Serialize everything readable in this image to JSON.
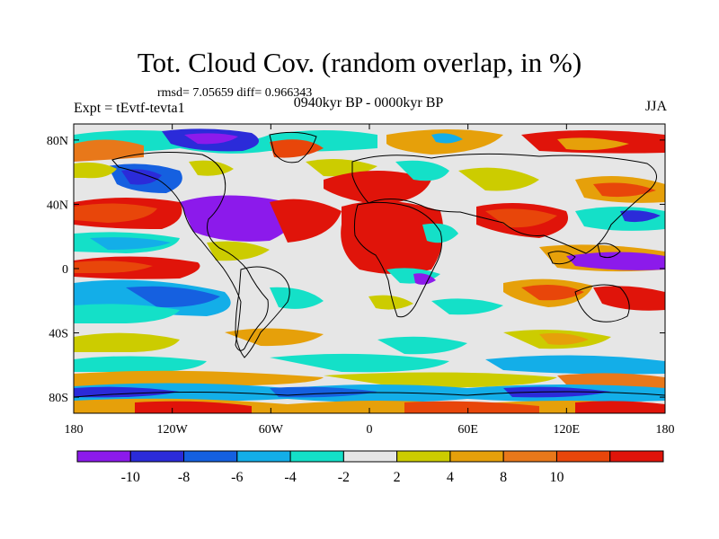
{
  "title": "Tot. Cloud Cov. (random overlap, in %)",
  "stats": "rmsd= 7.05659 diff= 0.966343",
  "experiment": "Expt = tEvtf-tevta1",
  "period": "0940kyr BP - 0000kyr BP",
  "season": "JJA",
  "axes": {
    "lon_ticks": [
      {
        "lon": -180,
        "label": "180"
      },
      {
        "lon": -120,
        "label": "120W"
      },
      {
        "lon": -60,
        "label": "60W"
      },
      {
        "lon": 0,
        "label": "0"
      },
      {
        "lon": 60,
        "label": "60E"
      },
      {
        "lon": 120,
        "label": "120E"
      },
      {
        "lon": 180,
        "label": "180"
      }
    ],
    "lat_ticks": [
      {
        "lat": 80,
        "label": "80N"
      },
      {
        "lat": 40,
        "label": "40N"
      },
      {
        "lat": 0,
        "label": "0"
      },
      {
        "lat": -40,
        "label": "40S"
      },
      {
        "lat": -80,
        "label": "80S"
      }
    ],
    "lon_range": [
      -180,
      180
    ],
    "lat_range": [
      -90,
      90
    ]
  },
  "colorbar": {
    "colors": [
      "#8c1aeb",
      "#2b2bd9",
      "#1560e0",
      "#13aee8",
      "#14e0c8",
      "#e6e6e6",
      "#cccc00",
      "#e6a00a",
      "#e8781a",
      "#e8460a",
      "#e0140a"
    ],
    "labels": [
      "-10",
      "-8",
      "-6",
      "-4",
      "-2",
      "2",
      "4",
      "8",
      "10"
    ]
  }
}
